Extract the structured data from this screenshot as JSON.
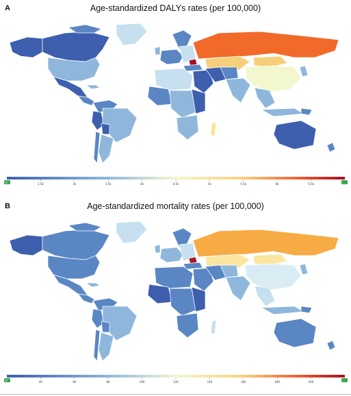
{
  "panels": [
    {
      "letter": "A",
      "title": "Age-standardized DALYs rates (per 100,000)",
      "colors": {
        "high_russia": "#f26a2a",
        "mid_high_steppe": "#f7cf7a",
        "pale_china": "#f2f7cd",
        "dark_blue": "#3d5fae",
        "mid_blue": "#5a86c4",
        "light_blue": "#8fb7dc",
        "pale_blue": "#c6e0ef",
        "yellow": "#f8e58c",
        "dark_red": "#a50f26"
      },
      "scale": {
        "end_left": "0",
        "end_right": "...",
        "ticks": [
          "2.5k",
          "3k",
          "3.5k",
          "4k",
          "4.5k",
          "5k",
          "5.5k",
          "6k",
          "6.5k"
        ]
      }
    },
    {
      "letter": "B",
      "title": "Age-standardized mortality rates (per 100,000)",
      "colors": {
        "high_russia": "#f7ab45",
        "mid_high_steppe": "#fbe6a0",
        "pale_china": "#d9ecf4",
        "dark_blue": "#3d5fae",
        "mid_blue": "#5a86c4",
        "light_blue": "#8fb7dc",
        "pale_blue": "#c6e0ef",
        "yellow": "#f8e58c",
        "dark_red": "#b3112b"
      },
      "scale": {
        "end_left": "0",
        "end_right": "...",
        "ticks": [
          "40",
          "60",
          "80",
          "100",
          "120",
          "140",
          "160",
          "180",
          "200"
        ]
      }
    }
  ]
}
